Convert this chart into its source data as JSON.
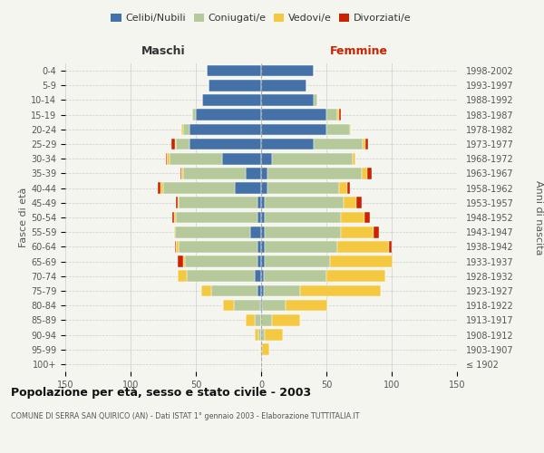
{
  "age_groups": [
    "100+",
    "95-99",
    "90-94",
    "85-89",
    "80-84",
    "75-79",
    "70-74",
    "65-69",
    "60-64",
    "55-59",
    "50-54",
    "45-49",
    "40-44",
    "35-39",
    "30-34",
    "25-29",
    "20-24",
    "15-19",
    "10-14",
    "5-9",
    "0-4"
  ],
  "birth_years": [
    "≤ 1902",
    "1903-1907",
    "1908-1912",
    "1913-1917",
    "1918-1922",
    "1923-1927",
    "1928-1932",
    "1933-1937",
    "1938-1942",
    "1943-1947",
    "1948-1952",
    "1953-1957",
    "1958-1962",
    "1963-1967",
    "1968-1972",
    "1973-1977",
    "1978-1982",
    "1983-1987",
    "1988-1992",
    "1993-1997",
    "1998-2002"
  ],
  "males": {
    "celibi": [
      0,
      0,
      0,
      0,
      1,
      3,
      5,
      3,
      3,
      8,
      3,
      3,
      20,
      12,
      30,
      55,
      55,
      50,
      45,
      40,
      42
    ],
    "coniugati": [
      0,
      0,
      2,
      5,
      20,
      35,
      52,
      55,
      60,
      58,
      62,
      60,
      55,
      48,
      40,
      10,
      5,
      3,
      0,
      0,
      0
    ],
    "vedovi": [
      0,
      1,
      3,
      7,
      8,
      8,
      7,
      2,
      2,
      1,
      2,
      1,
      2,
      1,
      2,
      1,
      1,
      0,
      0,
      0,
      0
    ],
    "divorziati": [
      0,
      0,
      0,
      0,
      0,
      0,
      0,
      4,
      1,
      0,
      1,
      1,
      2,
      1,
      1,
      3,
      0,
      0,
      0,
      0,
      0
    ]
  },
  "females": {
    "nubili": [
      0,
      0,
      0,
      0,
      1,
      2,
      2,
      3,
      3,
      3,
      3,
      3,
      5,
      5,
      8,
      40,
      50,
      50,
      40,
      35,
      40
    ],
    "coniugate": [
      0,
      1,
      3,
      8,
      18,
      28,
      48,
      50,
      55,
      58,
      58,
      60,
      55,
      72,
      62,
      38,
      18,
      8,
      3,
      0,
      0
    ],
    "vedove": [
      1,
      5,
      14,
      22,
      32,
      62,
      45,
      48,
      40,
      25,
      18,
      10,
      6,
      4,
      2,
      2,
      1,
      2,
      0,
      0,
      0
    ],
    "divorziate": [
      0,
      0,
      0,
      0,
      0,
      0,
      0,
      0,
      2,
      4,
      4,
      4,
      2,
      4,
      0,
      2,
      0,
      1,
      0,
      0,
      0
    ]
  },
  "colors": {
    "celibi": "#4472a8",
    "coniugati": "#b5c99a",
    "vedovi": "#f5c842",
    "divorziati": "#cc2200"
  },
  "xlim": 150,
  "title": "Popolazione per età, sesso e stato civile - 2003",
  "subtitle": "COMUNE DI SERRA SAN QUIRICO (AN) - Dati ISTAT 1° gennaio 2003 - Elaborazione TUTTITALIA.IT",
  "ylabel_left": "Fasce di età",
  "ylabel_right": "Anni di nascita",
  "xlabel_left": "Maschi",
  "xlabel_right": "Femmine",
  "legend_labels": [
    "Celibi/Nubili",
    "Coniugati/e",
    "Vedovi/e",
    "Divorziati/e"
  ],
  "bg_color": "#f5f5f0",
  "grid_color": "#cccccc"
}
